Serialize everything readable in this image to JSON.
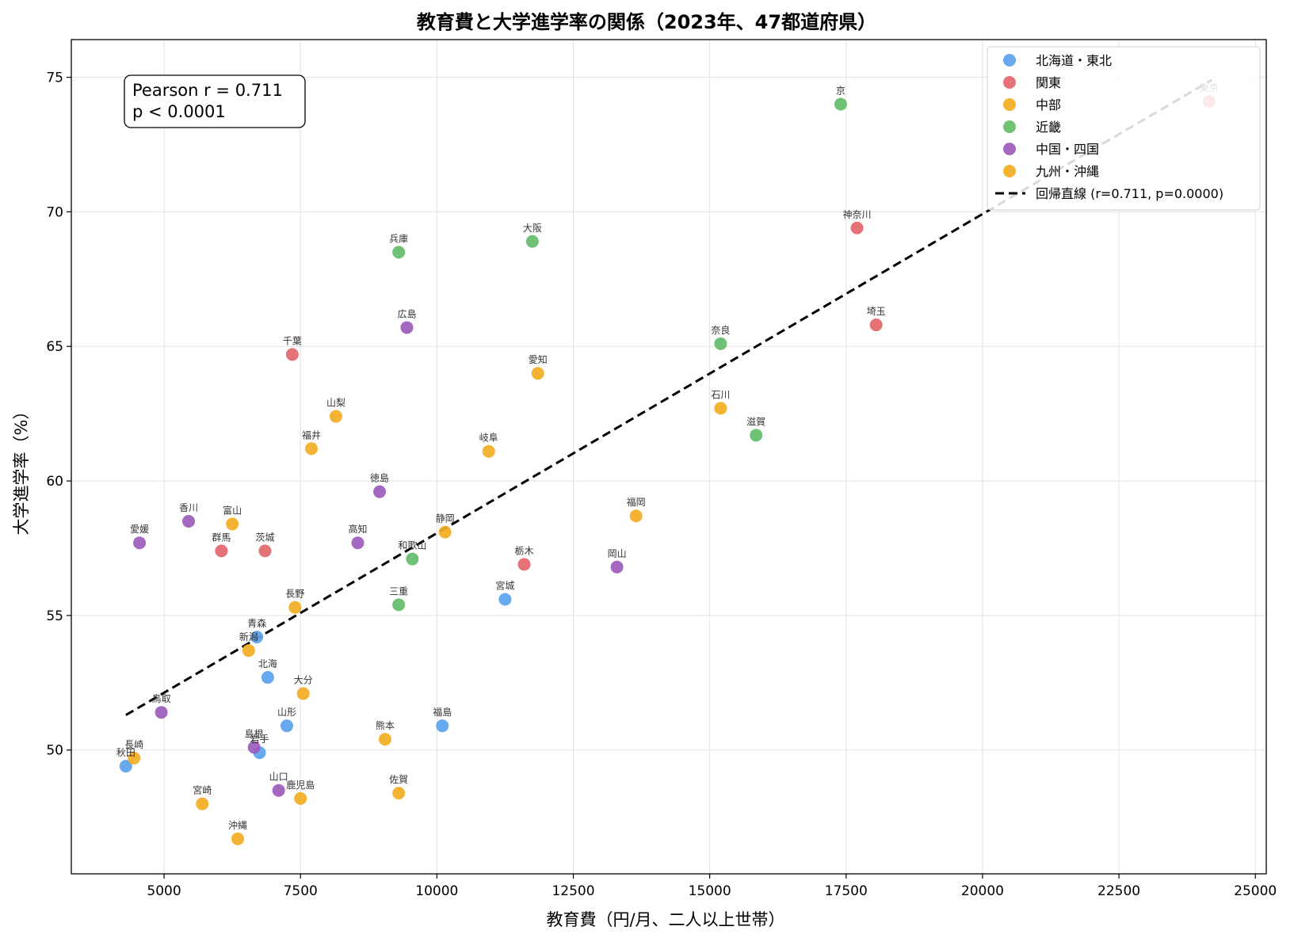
{
  "chart_data": {
    "type": "scatter",
    "title": "教育費と大学進学率の関係（2023年、47都道府県）",
    "xlabel": "教育費（円/月、二人以上世帯）",
    "ylabel": "大学進学率（%）",
    "xlim": [
      3300,
      25200
    ],
    "ylim": [
      45.4,
      76.4
    ],
    "xticks": [
      5000,
      7500,
      10000,
      12500,
      15000,
      17500,
      20000,
      22500,
      25000
    ],
    "yticks": [
      50,
      55,
      60,
      65,
      70,
      75
    ],
    "grid": true,
    "legend_position": "top-right",
    "stats_box": {
      "line1": "Pearson r = 0.711",
      "line2": "p < 0.0001"
    },
    "regression": {
      "label": "回帰直線 (r=0.711, p=0.0000)",
      "x": [
        4300,
        24200
      ],
      "y": [
        51.3,
        74.9
      ],
      "color": "#000000"
    },
    "series": [
      {
        "name": "北海道・東北",
        "color": "#5aa2ee",
        "points": [
          {
            "label": "北海",
            "x": 6900,
            "y": 52.7
          },
          {
            "label": "青森",
            "x": 6700,
            "y": 54.2
          },
          {
            "label": "岩手",
            "x": 6750,
            "y": 49.9
          },
          {
            "label": "宮城",
            "x": 11250,
            "y": 55.6
          },
          {
            "label": "秋田",
            "x": 4300,
            "y": 49.4
          },
          {
            "label": "山形",
            "x": 7250,
            "y": 50.9
          },
          {
            "label": "福島",
            "x": 10100,
            "y": 50.9
          }
        ]
      },
      {
        "name": "関東",
        "color": "#e3666b",
        "points": [
          {
            "label": "茨城",
            "x": 6850,
            "y": 57.4
          },
          {
            "label": "栃木",
            "x": 11600,
            "y": 56.9
          },
          {
            "label": "群馬",
            "x": 6050,
            "y": 57.4
          },
          {
            "label": "埼玉",
            "x": 18050,
            "y": 65.8
          },
          {
            "label": "千葉",
            "x": 7350,
            "y": 64.7
          },
          {
            "label": "東京",
            "x": 24150,
            "y": 74.1
          },
          {
            "label": "神奈川",
            "x": 17700,
            "y": 69.4
          }
        ]
      },
      {
        "name": "中部",
        "color": "#f2ad22",
        "points": [
          {
            "label": "新潟",
            "x": 6550,
            "y": 53.7
          },
          {
            "label": "富山",
            "x": 6250,
            "y": 58.4
          },
          {
            "label": "石川",
            "x": 15200,
            "y": 62.7
          },
          {
            "label": "福井",
            "x": 7700,
            "y": 61.2
          },
          {
            "label": "山梨",
            "x": 8150,
            "y": 62.4
          },
          {
            "label": "長野",
            "x": 7400,
            "y": 55.3
          },
          {
            "label": "岐阜",
            "x": 10950,
            "y": 61.1
          },
          {
            "label": "静岡",
            "x": 10150,
            "y": 58.1
          },
          {
            "label": "愛知",
            "x": 11850,
            "y": 64.0
          }
        ]
      },
      {
        "name": "近畿",
        "color": "#63bc6a",
        "points": [
          {
            "label": "三重",
            "x": 9300,
            "y": 55.4
          },
          {
            "label": "滋賀",
            "x": 15850,
            "y": 61.7
          },
          {
            "label": "京",
            "x": 17400,
            "y": 74.0
          },
          {
            "label": "大阪",
            "x": 11750,
            "y": 68.9
          },
          {
            "label": "兵庫",
            "x": 9300,
            "y": 68.5
          },
          {
            "label": "奈良",
            "x": 15200,
            "y": 65.1
          },
          {
            "label": "和歌山",
            "x": 9550,
            "y": 57.1
          }
        ]
      },
      {
        "name": "中国・四国",
        "color": "#9c5bbb",
        "points": [
          {
            "label": "鳥取",
            "x": 4950,
            "y": 51.4
          },
          {
            "label": "島根",
            "x": 6650,
            "y": 50.1
          },
          {
            "label": "岡山",
            "x": 13300,
            "y": 56.8
          },
          {
            "label": "広島",
            "x": 9450,
            "y": 65.7
          },
          {
            "label": "山口",
            "x": 7100,
            "y": 48.5
          },
          {
            "label": "徳島",
            "x": 8950,
            "y": 59.6
          },
          {
            "label": "香川",
            "x": 5450,
            "y": 58.5
          },
          {
            "label": "愛媛",
            "x": 4550,
            "y": 57.7
          },
          {
            "label": "高知",
            "x": 8550,
            "y": 57.7
          }
        ]
      },
      {
        "name": "九州・沖縄",
        "color": "#f2ad22",
        "points": [
          {
            "label": "福岡",
            "x": 13650,
            "y": 58.7
          },
          {
            "label": "佐賀",
            "x": 9300,
            "y": 48.4
          },
          {
            "label": "長崎",
            "x": 4450,
            "y": 49.7
          },
          {
            "label": "熊本",
            "x": 9050,
            "y": 50.4
          },
          {
            "label": "大分",
            "x": 7550,
            "y": 52.1
          },
          {
            "label": "宮崎",
            "x": 5700,
            "y": 48.0
          },
          {
            "label": "鹿児島",
            "x": 7500,
            "y": 48.2
          },
          {
            "label": "沖縄",
            "x": 6350,
            "y": 46.7
          }
        ]
      }
    ]
  }
}
